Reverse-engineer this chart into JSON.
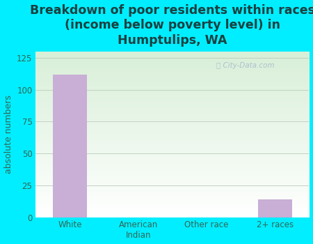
{
  "categories": [
    "White",
    "American\nIndian",
    "Other race",
    "2+ races"
  ],
  "values": [
    112,
    0,
    0,
    14
  ],
  "bar_color": "#c9aed6",
  "title": "Breakdown of poor residents within races\n(income below poverty level) in\nHumptulips, WA",
  "ylabel": "absolute numbers",
  "ylim": [
    0,
    130
  ],
  "yticks": [
    0,
    25,
    50,
    75,
    100,
    125
  ],
  "background_color": "#00eeff",
  "plot_bg_color_top": "#d8efd8",
  "plot_bg_color_bottom": "#ffffff",
  "title_color": "#1a4040",
  "axis_color": "#336655",
  "watermark": "City-Data.com",
  "title_fontsize": 12.5,
  "ylabel_fontsize": 9,
  "tick_fontsize": 8.5
}
